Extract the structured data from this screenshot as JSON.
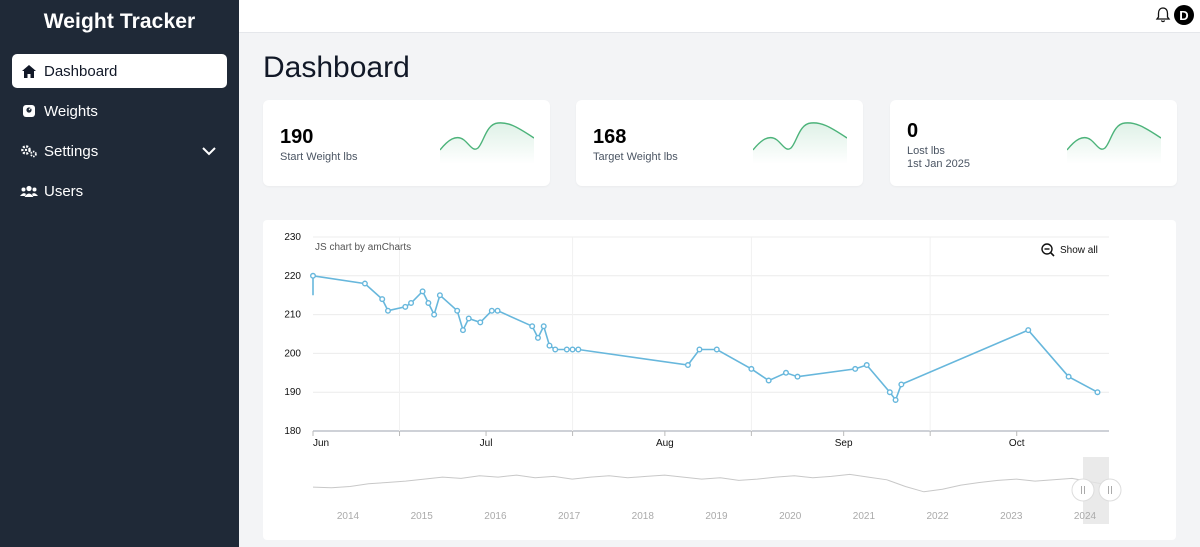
{
  "app": {
    "title": "Weight Tracker"
  },
  "sidebar": {
    "items": [
      {
        "label": "Dashboard",
        "icon": "home-icon",
        "active": true
      },
      {
        "label": "Weights",
        "icon": "scale-icon"
      },
      {
        "label": "Settings",
        "icon": "gears-icon",
        "expandable": true
      },
      {
        "label": "Users",
        "icon": "users-icon"
      }
    ]
  },
  "topbar": {
    "avatar_initial": "D",
    "bell_icon": "bell-icon"
  },
  "page": {
    "title": "Dashboard"
  },
  "cards": [
    {
      "value": "190",
      "label": "Start Weight lbs",
      "sublabel": ""
    },
    {
      "value": "168",
      "label": "Target Weight lbs",
      "sublabel": ""
    },
    {
      "value": "0",
      "label": "Lost lbs",
      "sublabel": "1st Jan 2025"
    }
  ],
  "colors": {
    "sidebar_bg": "#1f2937",
    "line": "#67b7dc",
    "sparkline": "#4cb37a"
  },
  "chart_controls": {
    "credit": "JS chart by amCharts",
    "show_all": "Show all",
    "zoom_icon": "zoom-out-icon"
  },
  "chart_data": {
    "type": "line",
    "ylim": [
      180,
      230
    ],
    "y_ticks": [
      180,
      190,
      200,
      210,
      220,
      230
    ],
    "x_tick_labels": [
      "Jun",
      "Jul",
      "Aug",
      "Sep",
      "Oct"
    ],
    "grid": true,
    "x": [
      "2024-06-01",
      "2024-06-10",
      "2024-06-13",
      "2024-06-14",
      "2024-06-17",
      "2024-06-18",
      "2024-06-20",
      "2024-06-21",
      "2024-06-22",
      "2024-06-23",
      "2024-06-26",
      "2024-06-27",
      "2024-06-28",
      "2024-06-30",
      "2024-07-02",
      "2024-07-03",
      "2024-07-09",
      "2024-07-10",
      "2024-07-11",
      "2024-07-12",
      "2024-07-13",
      "2024-07-15",
      "2024-07-16",
      "2024-07-17",
      "2024-08-05",
      "2024-08-07",
      "2024-08-10",
      "2024-08-16",
      "2024-08-19",
      "2024-08-22",
      "2024-08-24",
      "2024-09-03",
      "2024-09-05",
      "2024-09-09",
      "2024-09-10",
      "2024-09-11",
      "2024-10-03",
      "2024-10-10",
      "2024-10-15"
    ],
    "values": [
      220,
      218,
      214,
      211,
      212,
      213,
      216,
      213,
      210,
      215,
      211,
      206,
      209,
      208,
      211,
      211,
      207,
      204,
      207,
      202,
      201,
      201,
      201,
      201,
      197,
      201,
      201,
      196,
      193,
      195,
      194,
      196,
      197,
      190,
      188,
      192,
      206,
      194,
      190
    ],
    "navigator_x_labels": [
      "2014",
      "2015",
      "2016",
      "2017",
      "2018",
      "2019",
      "2020",
      "2021",
      "2022",
      "2023",
      "2024"
    ]
  }
}
